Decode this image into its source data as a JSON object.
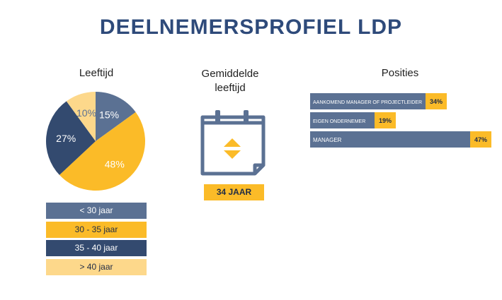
{
  "title": "DEELNEMERSPROFIEL LDP",
  "colors": {
    "title": "#2e4a7a",
    "slate": "#5b7193",
    "yellow": "#fbbb28",
    "navy": "#334a6f",
    "light_yellow": "#fdd88b"
  },
  "age_section": {
    "heading": "Leeftijd",
    "legend": [
      {
        "label": "< 30 jaar",
        "color": "#5b7193",
        "text_color": "#ffffff"
      },
      {
        "label": "30 - 35 jaar",
        "color": "#fbbb28",
        "text_color": "#1f2b45"
      },
      {
        "label": "35 - 40 jaar",
        "color": "#334a6f",
        "text_color": "#ffffff"
      },
      {
        "label": "> 40 jaar",
        "color": "#fdd88b",
        "text_color": "#1f2b45"
      }
    ]
  },
  "avg_section": {
    "heading_line1": "Gemiddelde",
    "heading_line2": "leeftijd",
    "value": "34 JAAR",
    "icon": "calendar-icon"
  },
  "positions_section": {
    "heading": "Posities"
  },
  "chart_data": [
    {
      "type": "pie",
      "categories": [
        "< 30 jaar",
        "30 - 35 jaar",
        "35 - 40 jaar",
        "> 40 jaar"
      ],
      "values": [
        15,
        48,
        27,
        10
      ],
      "labels": [
        "15%",
        "48%",
        "27%",
        "10%"
      ],
      "colors": [
        "#5b7193",
        "#fbbb28",
        "#334a6f",
        "#fdd88b"
      ],
      "label_colors": [
        "#ffffff",
        "#ffffff",
        "#ffffff",
        "#5b7193"
      ]
    },
    {
      "type": "bar",
      "orientation": "horizontal",
      "categories": [
        "AANKOMEND MANAGER OF PROJECTLEIDER",
        "EIGEN ONDERNEMER",
        "MANAGER"
      ],
      "values": [
        34,
        19,
        47
      ],
      "labels": [
        "34%",
        "19%",
        "47%"
      ],
      "bar_color": "#5b7193",
      "label_bg": "#fbbb28"
    }
  ]
}
